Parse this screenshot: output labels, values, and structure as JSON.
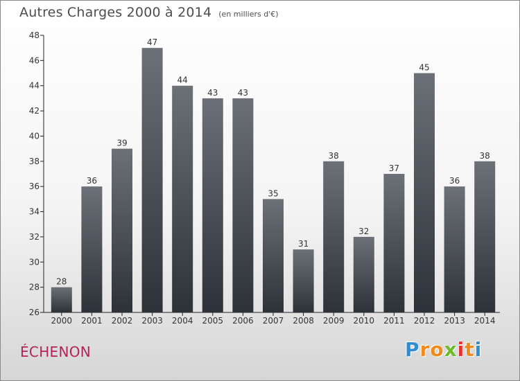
{
  "title": "Autres Charges 2000 à 2014",
  "unit": "(en milliers d'€)",
  "place": "ÉCHENON",
  "logo": {
    "letters": [
      {
        "char": "P",
        "color": "#2f8ed1"
      },
      {
        "char": "r",
        "color": "#f08a1c"
      },
      {
        "char": "o",
        "color": "#f08a1c"
      },
      {
        "char": "x",
        "color": "#6fba2c"
      },
      {
        "char": "i",
        "color": "#e8322f"
      },
      {
        "char": "t",
        "color": "#f08a1c"
      },
      {
        "char": "i",
        "color": "#2f8ed1"
      }
    ]
  },
  "colors": {
    "bar_top": "#6c7077",
    "bar_bottom": "#2d3138",
    "axis": "#222222",
    "text": "#333333"
  },
  "chart_data": {
    "type": "bar",
    "categories": [
      "2000",
      "2001",
      "2002",
      "2003",
      "2004",
      "2005",
      "2006",
      "2007",
      "2008",
      "2009",
      "2010",
      "2011",
      "2012",
      "2013",
      "2014"
    ],
    "values": [
      28,
      36,
      39,
      47,
      44,
      43,
      43,
      35,
      31,
      38,
      32,
      37,
      45,
      36,
      38
    ],
    "ylim": [
      26,
      48
    ],
    "yticks": [
      26,
      28,
      30,
      32,
      34,
      36,
      38,
      40,
      42,
      44,
      46,
      48
    ],
    "data_labels": true,
    "grid": false
  }
}
